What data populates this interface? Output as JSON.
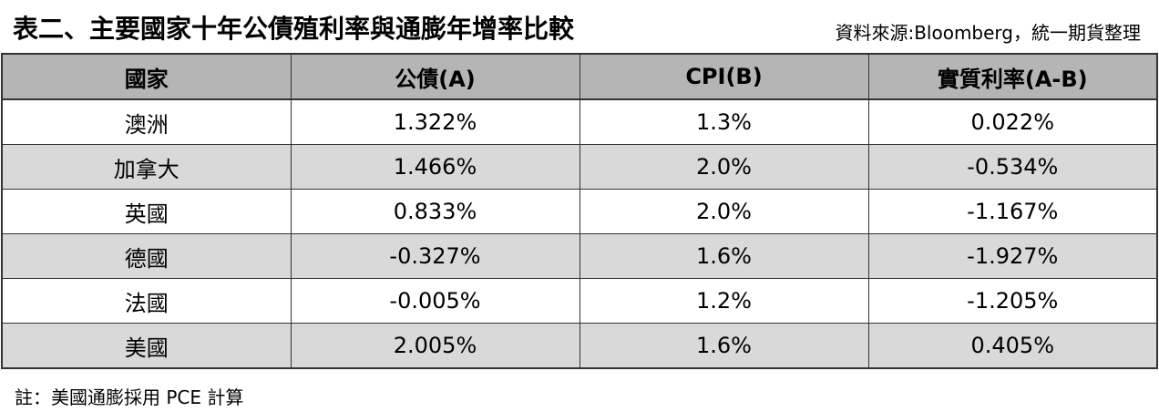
{
  "header": {
    "title": "表二、主要國家十年公債殖利率與通膨年增率比較",
    "source": "資料來源:Bloomberg，統一期貨整理"
  },
  "table": {
    "columns": [
      "國家",
      "公債(A)",
      "CPI(B)",
      "實質利率(A-B)"
    ],
    "rows": [
      [
        "澳洲",
        "1.322%",
        "1.3%",
        "0.022%"
      ],
      [
        "加拿大",
        "1.466%",
        "2.0%",
        "-0.534%"
      ],
      [
        "英國",
        "0.833%",
        "2.0%",
        "-1.167%"
      ],
      [
        "德國",
        "-0.327%",
        "1.6%",
        "-1.927%"
      ],
      [
        "法國",
        "-0.005%",
        "1.2%",
        "-1.205%"
      ],
      [
        "美國",
        "2.005%",
        "1.6%",
        "0.405%"
      ]
    ]
  },
  "note": "註：美國通膨採用 PCE 計算"
}
